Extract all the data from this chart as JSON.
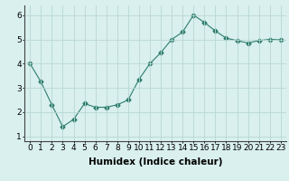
{
  "x": [
    0,
    1,
    2,
    3,
    4,
    5,
    6,
    7,
    8,
    9,
    10,
    11,
    12,
    13,
    14,
    15,
    16,
    17,
    18,
    19,
    20,
    21,
    22,
    23
  ],
  "y": [
    4.0,
    3.25,
    2.3,
    1.4,
    1.7,
    2.35,
    2.2,
    2.2,
    2.3,
    2.5,
    3.35,
    4.0,
    4.45,
    5.0,
    5.3,
    6.0,
    5.7,
    5.35,
    5.05,
    4.95,
    4.85,
    4.95,
    5.0,
    4.98
  ],
  "line_color": "#2e7d6e",
  "marker": "D",
  "markersize": 2.5,
  "linewidth": 0.8,
  "xlabel": "Humidex (Indice chaleur)",
  "xlabel_fontsize": 7.5,
  "bg_color": "#d9f0ee",
  "grid_color": "#b8d8d2",
  "axis_color": "#444444",
  "xlim": [
    -0.5,
    23.5
  ],
  "ylim": [
    0.8,
    6.4
  ],
  "yticks": [
    1,
    2,
    3,
    4,
    5,
    6
  ],
  "xtick_labels": [
    "0",
    "1",
    "2",
    "3",
    "4",
    "5",
    "6",
    "7",
    "8",
    "9",
    "10",
    "11",
    "12",
    "13",
    "14",
    "15",
    "16",
    "17",
    "18",
    "19",
    "20",
    "21",
    "22",
    "23"
  ],
  "tick_fontsize": 6.5
}
